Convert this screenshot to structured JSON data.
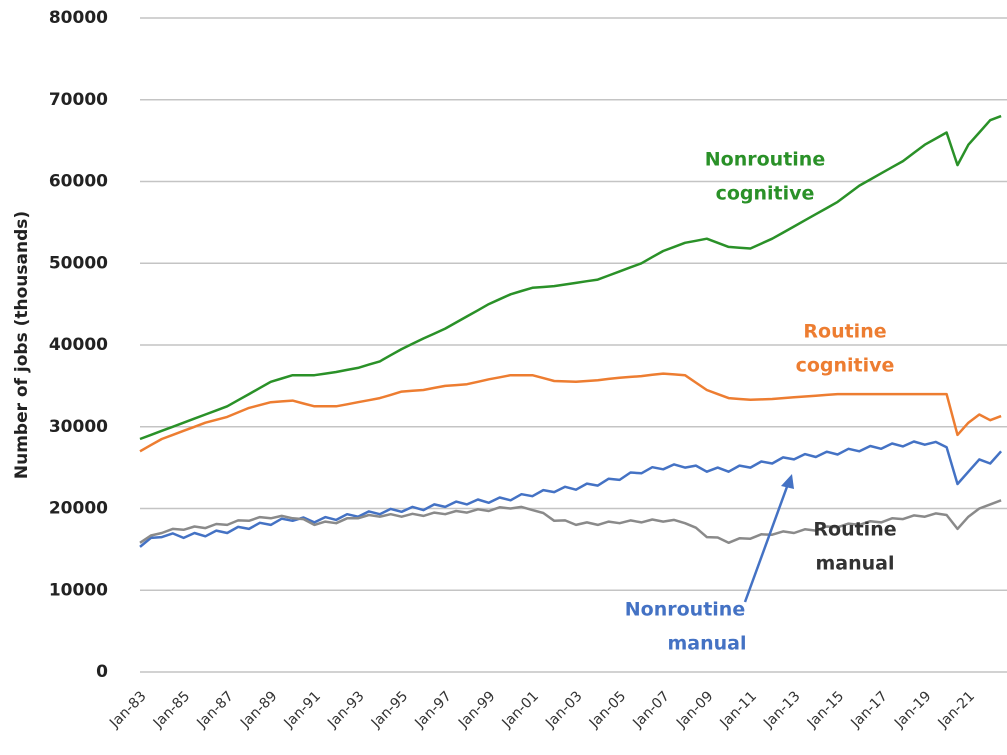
{
  "chart_data": {
    "type": "line",
    "y_label": "Number of jobs (thousands)",
    "categories": [
      "Jan-83",
      null,
      null,
      null,
      "Jan-85",
      null,
      null,
      null,
      "Jan-87",
      null,
      null,
      null,
      "Jan-89",
      null,
      null,
      null,
      "Jan-91",
      null,
      null,
      null,
      "Jan-93",
      null,
      null,
      null,
      "Jan-95",
      null,
      null,
      null,
      "Jan-97",
      null,
      null,
      null,
      "Jan-99",
      null,
      null,
      null,
      "Jan-01",
      null,
      null,
      null,
      "Jan-03",
      null,
      null,
      null,
      "Jan-05",
      null,
      null,
      null,
      "Jan-07",
      null,
      null,
      null,
      "Jan-09",
      null,
      null,
      null,
      "Jan-11",
      null,
      null,
      null,
      "Jan-13",
      null,
      null,
      null,
      "Jan-15",
      null,
      null,
      null,
      "Jan-17",
      null,
      null,
      null,
      "Jan-19",
      null,
      null,
      null,
      "Jan-21",
      null,
      null,
      null
    ],
    "series": [
      {
        "name": "Nonroutine cognitive",
        "color": "#2a9128",
        "values": [
          28500,
          29000,
          29500,
          30000,
          30500,
          31000,
          31500,
          32000,
          32500,
          33250,
          34000,
          34750,
          35500,
          35900,
          36300,
          36300,
          36300,
          36500,
          36700,
          36950,
          37200,
          37600,
          38000,
          38750,
          39500,
          40150,
          40800,
          41400,
          42000,
          42750,
          43500,
          44250,
          45000,
          45600,
          46200,
          46600,
          47000,
          47100,
          47200,
          47400,
          47600,
          47800,
          48000,
          48500,
          49000,
          49500,
          50000,
          50750,
          51500,
          52000,
          52500,
          52750,
          53000,
          52500,
          52000,
          51900,
          51800,
          52400,
          53000,
          53750,
          54500,
          55250,
          56000,
          56750,
          57500,
          58500,
          59500,
          60250,
          61000,
          61750,
          62500,
          63500,
          64500,
          65250,
          66000,
          62000,
          64500,
          66000,
          67500,
          68000
        ]
      },
      {
        "name": "Routine cognitive",
        "color": "#ed7d31",
        "values": [
          27000,
          27750,
          28500,
          29000,
          29500,
          30000,
          30500,
          30850,
          31200,
          31750,
          32300,
          32650,
          33000,
          33100,
          33200,
          32850,
          32500,
          32500,
          32500,
          32750,
          33000,
          33250,
          33500,
          33900,
          34300,
          34400,
          34500,
          34750,
          35000,
          35100,
          35200,
          35500,
          35800,
          36050,
          36300,
          36300,
          36300,
          35950,
          35600,
          35550,
          35500,
          35600,
          35700,
          35850,
          36000,
          36100,
          36200,
          36350,
          36500,
          36400,
          36300,
          35400,
          34500,
          34000,
          33500,
          33400,
          33300,
          33350,
          33400,
          33500,
          33600,
          33700,
          33800,
          33900,
          34000,
          34000,
          34000,
          34000,
          34000,
          34000,
          34000,
          34000,
          34000,
          34000,
          34000,
          29000,
          30500,
          31500,
          30800,
          31300
        ]
      },
      {
        "name": "Nonroutine manual",
        "color": "#4472c4",
        "values": [
          15300,
          16400,
          16500,
          16950,
          16400,
          17000,
          16600,
          17300,
          17000,
          17750,
          17500,
          18250,
          18000,
          18750,
          18500,
          18900,
          18300,
          18950,
          18600,
          19300,
          19000,
          19650,
          19300,
          19950,
          19600,
          20200,
          19800,
          20500,
          20200,
          20850,
          20500,
          21100,
          20700,
          21350,
          21000,
          21750,
          21500,
          22250,
          22000,
          22650,
          22300,
          23050,
          22800,
          23650,
          23500,
          24400,
          24300,
          25050,
          24800,
          25400,
          25000,
          25250,
          24500,
          25000,
          24500,
          25250,
          25000,
          25750,
          25500,
          26250,
          26000,
          26650,
          26300,
          26950,
          26600,
          27300,
          27000,
          27650,
          27300,
          27950,
          27600,
          28200,
          27800,
          28150,
          27500,
          23000,
          24500,
          26000,
          25500,
          27000
        ]
      },
      {
        "name": "Routine manual",
        "color": "#8a8a8a",
        "values": [
          15800,
          16700,
          17000,
          17500,
          17400,
          17800,
          17600,
          18100,
          18000,
          18550,
          18500,
          18950,
          18800,
          19100,
          18800,
          18700,
          18000,
          18400,
          18200,
          18800,
          18800,
          19200,
          19000,
          19300,
          19000,
          19350,
          19100,
          19500,
          19300,
          19700,
          19500,
          19900,
          19700,
          20150,
          20000,
          20200,
          19800,
          19450,
          18500,
          18550,
          18000,
          18300,
          18000,
          18400,
          18200,
          18550,
          18300,
          18650,
          18400,
          18600,
          18200,
          17650,
          16500,
          16450,
          15800,
          16350,
          16300,
          16850,
          16800,
          17200,
          17000,
          17450,
          17300,
          17800,
          17700,
          18150,
          18000,
          18450,
          18300,
          18800,
          18700,
          19150,
          19000,
          19400,
          19200,
          17500,
          19000,
          20000,
          20500,
          21000
        ]
      }
    ],
    "annotations": [
      {
        "lines": [
          "Nonroutine",
          "cognitive"
        ],
        "color": "#2a9128"
      },
      {
        "lines": [
          "Routine",
          "cognitive"
        ],
        "color": "#ed7d31"
      },
      {
        "lines": [
          "Nonroutine",
          "manual"
        ],
        "color": "#4472c4"
      },
      {
        "lines": [
          "Routine",
          "manual"
        ],
        "color": "#333333"
      }
    ],
    "ylim": [
      0,
      80000
    ],
    "yticks": [
      0,
      10000,
      20000,
      30000,
      40000,
      50000,
      60000,
      70000,
      80000
    ],
    "grid": true
  }
}
